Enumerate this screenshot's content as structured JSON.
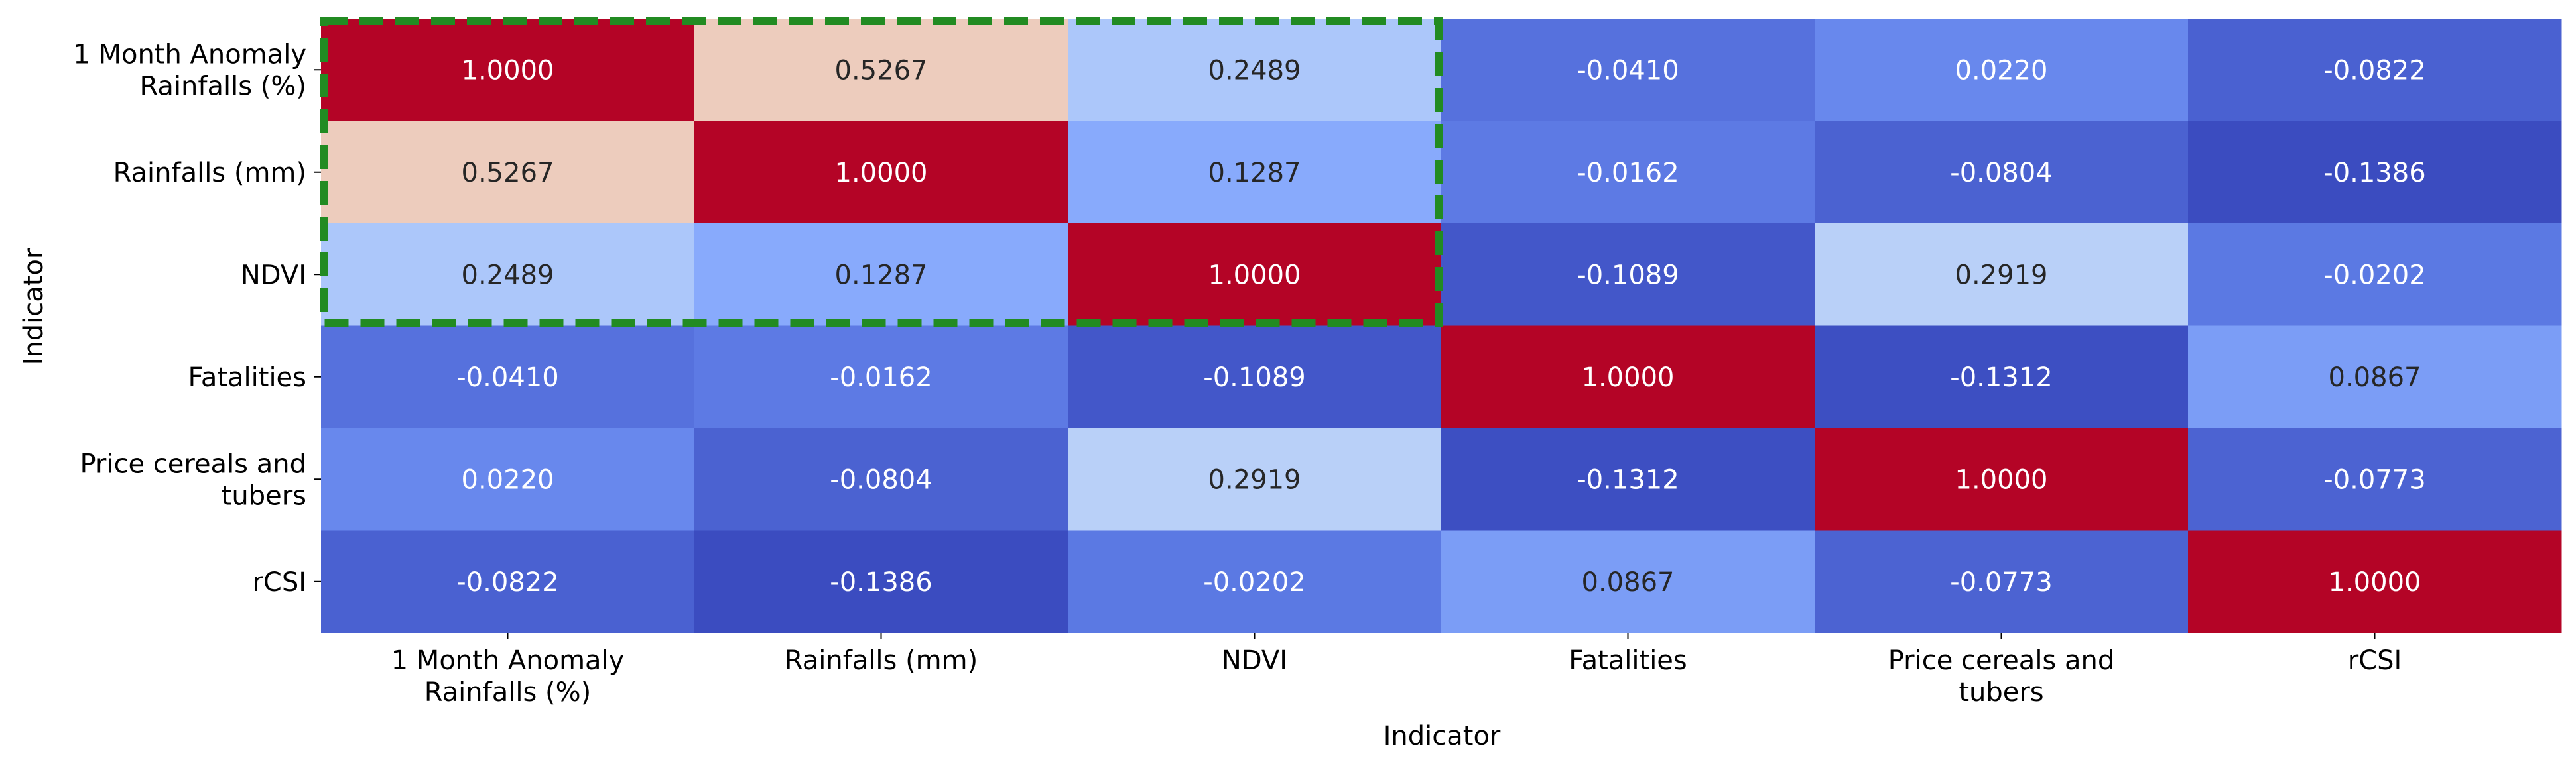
{
  "chart_data": {
    "type": "heatmap",
    "xlabel": "Indicator",
    "ylabel": "Indicator",
    "colormap": "coolwarm",
    "vmin": -0.1386,
    "vmax": 1.0,
    "categories": [
      [
        "1 Month Anomaly",
        "Rainfalls (%)"
      ],
      [
        "Rainfalls (mm)"
      ],
      [
        "NDVI"
      ],
      [
        "Fatalities"
      ],
      [
        "Price cereals and",
        "tubers"
      ],
      [
        "rCSI"
      ]
    ],
    "values": [
      [
        1.0,
        0.5267,
        0.2489,
        -0.041,
        0.022,
        -0.0822
      ],
      [
        0.5267,
        1.0,
        0.1287,
        -0.0162,
        -0.0804,
        -0.1386
      ],
      [
        0.2489,
        0.1287,
        1.0,
        -0.1089,
        0.2919,
        -0.0202
      ],
      [
        -0.041,
        -0.0162,
        -0.1089,
        1.0,
        -0.1312,
        0.0867
      ],
      [
        0.022,
        -0.0804,
        0.2919,
        -0.1312,
        1.0,
        -0.0773
      ],
      [
        -0.0822,
        -0.1386,
        -0.0202,
        0.0867,
        -0.0773,
        1.0
      ]
    ],
    "value_format": "4 decimals",
    "highlight": {
      "rows": [
        0,
        2
      ],
      "cols": [
        0,
        2
      ],
      "style": "dashed",
      "color": "#228b22"
    },
    "colors": {
      "max": "#b40426",
      "min": "#3b4cc0"
    }
  }
}
